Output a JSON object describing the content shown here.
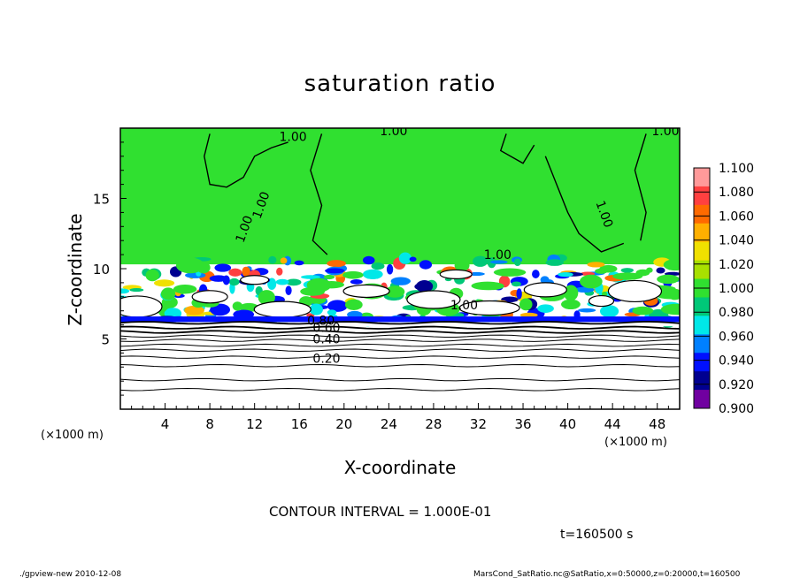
{
  "chart_data": {
    "type": "heatmap",
    "title": "saturation ratio",
    "xlabel": "X-coordinate",
    "ylabel": "Z-coordinate",
    "x_unit": "(×1000 m)",
    "y_unit": "(×1000 m)",
    "xlim": [
      0,
      50
    ],
    "ylim": [
      0,
      20
    ],
    "x_ticks": [
      4,
      8,
      12,
      16,
      20,
      24,
      28,
      32,
      36,
      40,
      44,
      48
    ],
    "y_ticks": [
      5,
      10,
      15
    ],
    "contour_labels": [
      "1.00",
      "1.00",
      "1.00",
      "1.00",
      "1.00",
      "1.00",
      "1.00",
      "1.00",
      "0.80",
      "0.60",
      "0.40",
      "0.20"
    ],
    "colorbar": {
      "levels": [
        "1.100",
        "1.080",
        "1.060",
        "1.040",
        "1.020",
        "1.000",
        "0.980",
        "0.960",
        "0.940",
        "0.920",
        "0.900"
      ],
      "colors": [
        "#ff9a9a",
        "#ff4040",
        "#ff6a00",
        "#ffb000",
        "#f0e000",
        "#a8e000",
        "#30e030",
        "#00c878",
        "#00e8e8",
        "#0080ff",
        "#0010ff",
        "#000090",
        "#7000a0"
      ]
    },
    "contour_interval": "CONTOUR INTERVAL = 1.000E-01",
    "time": "t=160500 s"
  },
  "footer": {
    "left": "./gpview-new  2010-12-08",
    "right": "MarsCond_SatRatio.nc@SatRatio,x=0:50000,z=0:20000,t=160500"
  }
}
